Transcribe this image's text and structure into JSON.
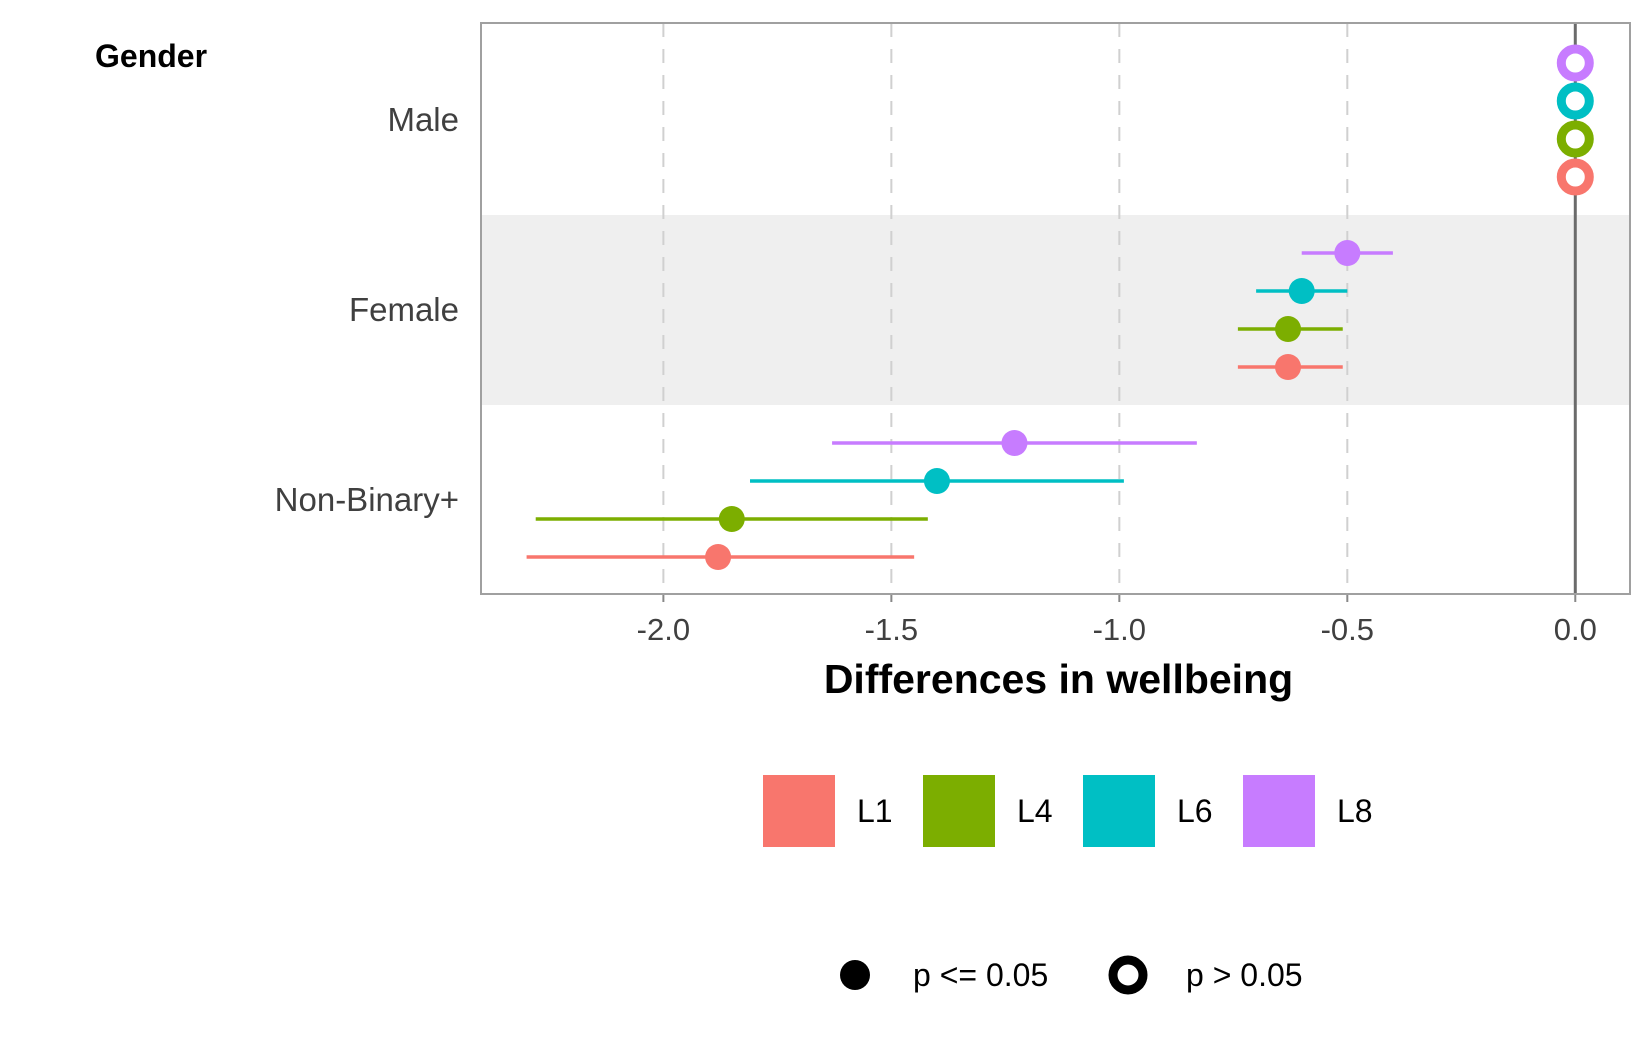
{
  "chart_data": {
    "type": "scatter",
    "title": "",
    "panel_title": "Gender",
    "xlabel": "Differences in wellbeing",
    "ylabel": "",
    "xlim": [
      -2.4,
      0.12
    ],
    "x_ticks": [
      -2.0,
      -1.5,
      -1.0,
      -0.5,
      0.0
    ],
    "x_tick_labels": [
      "-2.0",
      "-1.5",
      "-1.0",
      "-0.5",
      "0.0"
    ],
    "grid": "vertical dashed at x ticks",
    "reference_line": 0.0,
    "categories": [
      "Male",
      "Female",
      "Non-Binary+"
    ],
    "highlighted_band": "Female",
    "series": [
      {
        "name": "L1",
        "color": "#F8766D",
        "estimate": [
          0.0,
          -0.63,
          -1.88
        ],
        "lower": [
          0.0,
          -0.74,
          -2.3
        ],
        "upper": [
          0.0,
          -0.51,
          -1.45
        ],
        "significant": [
          false,
          true,
          true
        ]
      },
      {
        "name": "L4",
        "color": "#7CAE00",
        "estimate": [
          0.0,
          -0.63,
          -1.85
        ],
        "lower": [
          0.0,
          -0.74,
          -2.28
        ],
        "upper": [
          0.0,
          -0.51,
          -1.42
        ],
        "significant": [
          false,
          true,
          true
        ]
      },
      {
        "name": "L6",
        "color": "#00BFC4",
        "estimate": [
          0.0,
          -0.6,
          -1.4
        ],
        "lower": [
          0.0,
          -0.7,
          -1.81
        ],
        "upper": [
          0.0,
          -0.5,
          -0.99
        ],
        "significant": [
          false,
          true,
          true
        ]
      },
      {
        "name": "L8",
        "color": "#C77CFF",
        "estimate": [
          0.0,
          -0.5,
          -1.23
        ],
        "lower": [
          0.0,
          -0.6,
          -1.63
        ],
        "upper": [
          0.0,
          -0.4,
          -0.83
        ],
        "significant": [
          false,
          true,
          true
        ]
      }
    ],
    "legend_colors": {
      "placement": "bottom",
      "entries": [
        "L1",
        "L4",
        "L6",
        "L8"
      ]
    },
    "legend_shapes": {
      "placement": "bottom",
      "entries": [
        {
          "label": "p <= 0.05",
          "shape": "filled-circle"
        },
        {
          "label": "p > 0.05",
          "shape": "hollow-circle"
        }
      ]
    }
  }
}
